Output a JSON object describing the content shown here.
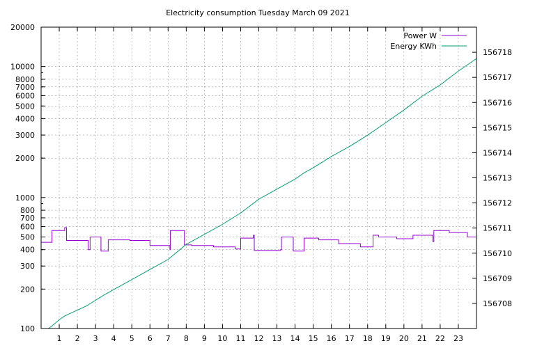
{
  "chart_data": {
    "type": "line",
    "title": "Electricity consumption Tuesday March 09 2021",
    "x_ticks": [
      "1",
      "2",
      "3",
      "4",
      "5",
      "6",
      "7",
      "8",
      "9",
      "10",
      "11",
      "12",
      "13",
      "14",
      "15",
      "16",
      "17",
      "18",
      "19",
      "20",
      "21",
      "22",
      "23"
    ],
    "xlim": [
      0,
      24
    ],
    "y_left": {
      "scale": "log",
      "ylim": [
        100,
        20000
      ],
      "ticks": [
        "100",
        "200",
        "300",
        "400",
        "500",
        "600",
        "700",
        "800",
        "1000",
        "2000",
        "3000",
        "4000",
        "5000",
        "6000",
        "7000",
        "8000",
        "10000",
        "20000"
      ]
    },
    "y_right": {
      "ylim": [
        156707,
        156719
      ],
      "ticks": [
        "156708",
        "156709",
        "156710",
        "156711",
        "156712",
        "156713",
        "156714",
        "156715",
        "156716",
        "156717",
        "156718"
      ]
    },
    "grid": true,
    "legend_position": "top-right",
    "series": [
      {
        "name": "Power W",
        "axis": "left",
        "color": "#9400d3",
        "style": "step",
        "points": [
          [
            0.0,
            455
          ],
          [
            0.6,
            455
          ],
          [
            0.6,
            560
          ],
          [
            1.3,
            560
          ],
          [
            1.3,
            590
          ],
          [
            1.4,
            590
          ],
          [
            1.4,
            470
          ],
          [
            2.6,
            470
          ],
          [
            2.6,
            400
          ],
          [
            2.7,
            400
          ],
          [
            2.7,
            500
          ],
          [
            3.3,
            500
          ],
          [
            3.3,
            390
          ],
          [
            3.7,
            390
          ],
          [
            3.7,
            475
          ],
          [
            4.9,
            475
          ],
          [
            4.9,
            470
          ],
          [
            6.0,
            470
          ],
          [
            6.0,
            430
          ],
          [
            7.1,
            430
          ],
          [
            7.1,
            400
          ],
          [
            7.12,
            400
          ],
          [
            7.12,
            560
          ],
          [
            7.9,
            560
          ],
          [
            7.9,
            435
          ],
          [
            8.3,
            435
          ],
          [
            8.3,
            430
          ],
          [
            9.5,
            430
          ],
          [
            9.5,
            420
          ],
          [
            10.7,
            420
          ],
          [
            10.7,
            405
          ],
          [
            11.0,
            405
          ],
          [
            11.0,
            490
          ],
          [
            11.7,
            490
          ],
          [
            11.7,
            515
          ],
          [
            11.75,
            515
          ],
          [
            11.75,
            395
          ],
          [
            13.2,
            395
          ],
          [
            13.2,
            400
          ],
          [
            13.25,
            400
          ],
          [
            13.25,
            500
          ],
          [
            13.9,
            500
          ],
          [
            13.9,
            390
          ],
          [
            14.5,
            390
          ],
          [
            14.5,
            490
          ],
          [
            15.3,
            490
          ],
          [
            15.3,
            475
          ],
          [
            16.4,
            475
          ],
          [
            16.4,
            445
          ],
          [
            17.6,
            445
          ],
          [
            17.6,
            420
          ],
          [
            18.3,
            420
          ],
          [
            18.3,
            515
          ],
          [
            18.6,
            515
          ],
          [
            18.6,
            500
          ],
          [
            19.6,
            500
          ],
          [
            19.6,
            485
          ],
          [
            20.5,
            485
          ],
          [
            20.5,
            515
          ],
          [
            21.6,
            515
          ],
          [
            21.6,
            460
          ],
          [
            21.65,
            460
          ],
          [
            21.65,
            560
          ],
          [
            22.5,
            560
          ],
          [
            22.5,
            540
          ],
          [
            23.5,
            540
          ],
          [
            23.5,
            500
          ],
          [
            24.0,
            500
          ]
        ]
      },
      {
        "name": "Energy KWh",
        "axis": "right",
        "color": "#009e73",
        "style": "line",
        "points": [
          [
            0.4,
            156707.0
          ],
          [
            0.6,
            156707.1
          ],
          [
            1.0,
            156707.35
          ],
          [
            1.3,
            156707.5
          ],
          [
            2.5,
            156707.9
          ],
          [
            3.5,
            156708.35
          ],
          [
            5.0,
            156708.95
          ],
          [
            6.0,
            156709.35
          ],
          [
            7.0,
            156709.75
          ],
          [
            8.0,
            156710.35
          ],
          [
            9.0,
            156710.75
          ],
          [
            10.0,
            156711.15
          ],
          [
            11.0,
            156711.6
          ],
          [
            12.0,
            156712.15
          ],
          [
            13.0,
            156712.55
          ],
          [
            14.0,
            156712.95
          ],
          [
            14.5,
            156713.2
          ],
          [
            15.0,
            156713.4
          ],
          [
            16.0,
            156713.85
          ],
          [
            17.0,
            156714.25
          ],
          [
            18.0,
            156714.7
          ],
          [
            19.0,
            156715.2
          ],
          [
            20.0,
            156715.7
          ],
          [
            21.0,
            156716.25
          ],
          [
            22.0,
            156716.7
          ],
          [
            23.0,
            156717.25
          ],
          [
            24.0,
            156717.75
          ]
        ]
      }
    ]
  }
}
